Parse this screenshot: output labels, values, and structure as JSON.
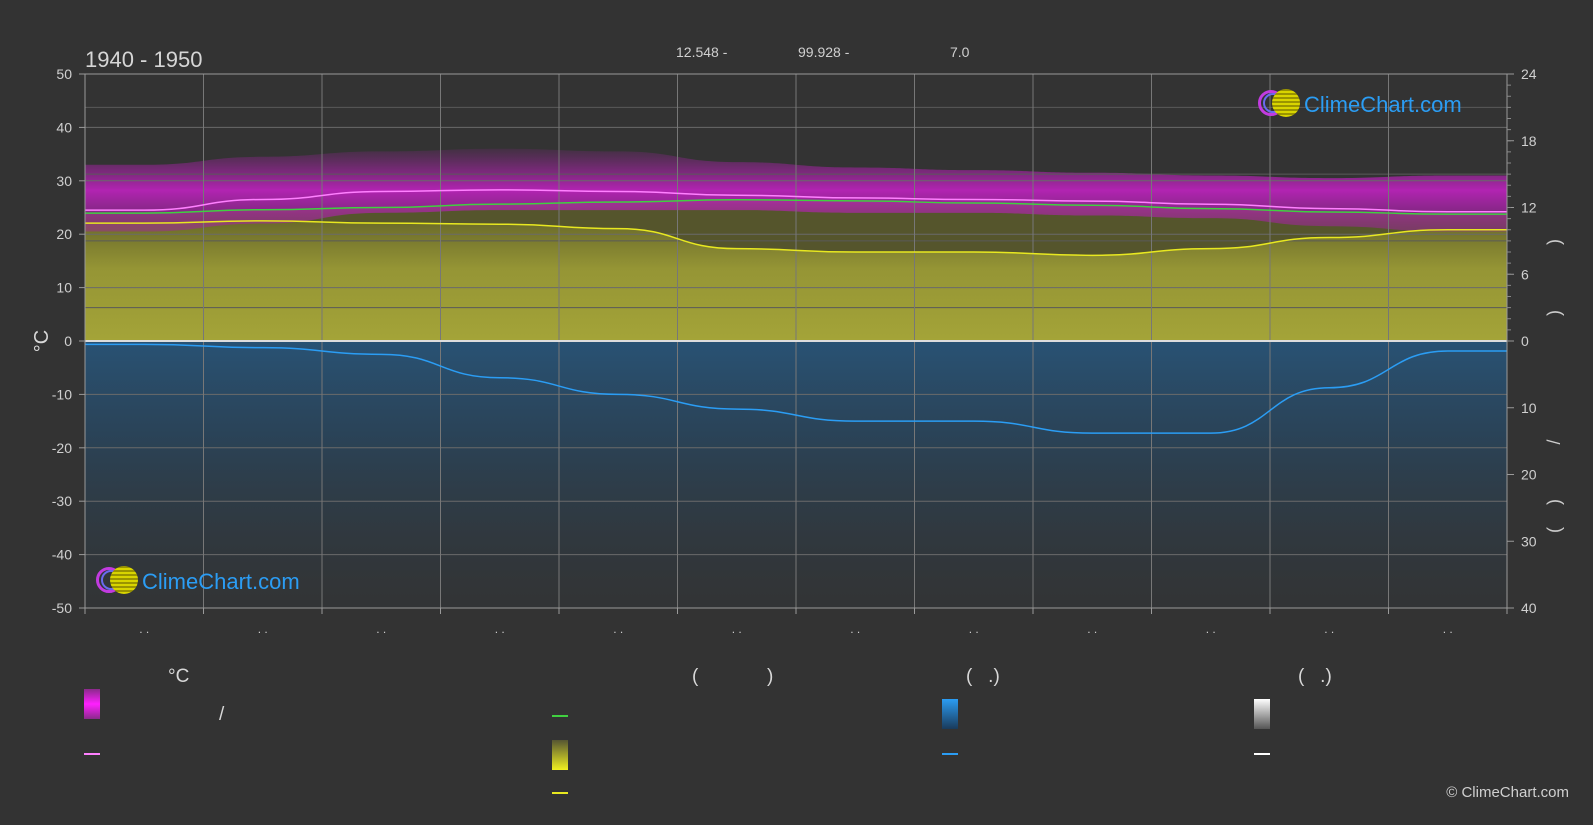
{
  "header": {
    "period": "1940 - 1950",
    "coord_lat": "12.548 -",
    "coord_lon": "99.928 -",
    "coord_elev": "7.0"
  },
  "axes": {
    "left_unit": "°C",
    "left_ticks": [
      "50",
      "40",
      "30",
      "20",
      "10",
      "0",
      "-10",
      "-20",
      "-30",
      "-40",
      "-50"
    ],
    "right_top_ticks": [
      "24",
      "18",
      "12",
      "6",
      "0"
    ],
    "right_bottom_ticks": [
      "10",
      "20",
      "30",
      "40"
    ],
    "right_label_glyphs": [
      ")",
      ")",
      "/",
      ")",
      "("
    ],
    "month_tick_label": ". ."
  },
  "legend": {
    "temperature_header": "°C",
    "sun_header_open": "(",
    "sun_header_close": ")",
    "rain_header": "(   .)",
    "snow_header": "(   .)",
    "slash": "/",
    "colors": {
      "temp_range": "#e020e0",
      "temp_avg": "#ff80ff",
      "daylight": "#40d040",
      "sunshine": "#c8c83a",
      "sunshine_line": "#e8e820",
      "rain": "#1f8fe0",
      "rain_line": "#2b9df4",
      "snow": "#ffffff"
    }
  },
  "logo_text": "ClimeChart.com",
  "copyright": "© ClimeChart.com",
  "chart_data": {
    "type": "line",
    "x": [
      1,
      2,
      3,
      4,
      5,
      6,
      7,
      8,
      9,
      10,
      11,
      12
    ],
    "left_ylim": [
      -50,
      50
    ],
    "right_hours_ylim": [
      0,
      24
    ],
    "right_precip_ylim": [
      0,
      40
    ],
    "grid": true,
    "series": [
      {
        "axis": "left",
        "values": [
          24.5,
          26.5,
          28.0,
          28.3,
          28.0,
          27.3,
          26.8,
          26.5,
          26.2,
          25.6,
          24.8,
          24.2
        ]
      },
      {
        "axis": "left",
        "values": [
          33,
          34.5,
          35.5,
          36,
          35.5,
          33.5,
          32.5,
          32,
          31.5,
          31,
          30.5,
          31
        ]
      },
      {
        "axis": "left",
        "values": [
          20.5,
          22,
          24,
          24.5,
          24.5,
          24.5,
          24,
          24,
          23.5,
          23,
          21.5,
          20.5
        ]
      },
      {
        "axis": "right_hours",
        "values": [
          11.5,
          11.8,
          12.0,
          12.3,
          12.5,
          12.7,
          12.6,
          12.4,
          12.2,
          11.9,
          11.6,
          11.4
        ]
      },
      {
        "axis": "right_hours",
        "values": [
          10.6,
          10.8,
          10.6,
          10.5,
          10.1,
          8.3,
          8.0,
          8.0,
          7.7,
          8.3,
          9.3,
          10.0
        ]
      },
      {
        "axis": "right_precip",
        "values": [
          0.5,
          1.0,
          2.0,
          5.5,
          8.0,
          10.2,
          12.0,
          12.0,
          13.8,
          13.8,
          7.0,
          1.5
        ]
      }
    ]
  }
}
